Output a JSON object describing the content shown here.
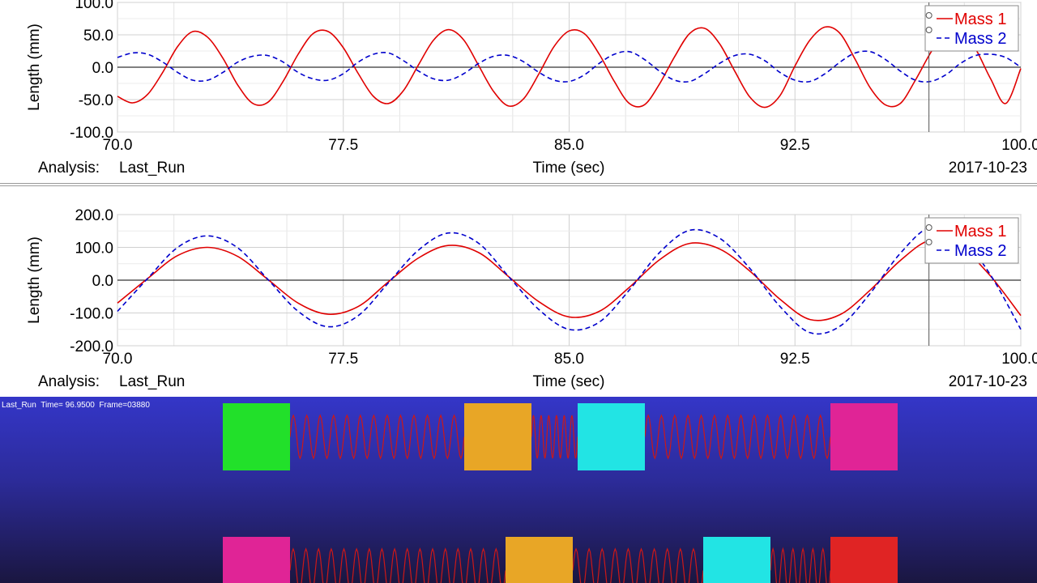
{
  "charts_meta": {
    "analysis_label": "Analysis:",
    "analysis_name": "Last_Run",
    "date": "2017-10-23"
  },
  "chart_data": [
    {
      "type": "line",
      "title": "",
      "xlabel": "Time (sec)",
      "ylabel": "Length (mm)",
      "xlim": [
        70.0,
        100.0
      ],
      "ylim": [
        -100.0,
        100.0
      ],
      "xticks": [
        "70.0",
        "77.5",
        "85.0",
        "92.5",
        "100.0"
      ],
      "yticks": [
        "100.0",
        "50.0",
        "0.0",
        "-50.0",
        "-100.0"
      ],
      "grid": true,
      "legend_position": "top-right",
      "cursor_x": 96.95,
      "series": [
        {
          "name": "Mass 1",
          "color": "#e00000",
          "dash": "solid",
          "x": [
            70.0,
            70.5,
            71.0,
            71.5,
            72.0,
            72.5,
            73.0,
            73.5,
            74.0,
            74.5,
            75.0,
            75.5,
            76.0,
            76.5,
            77.0,
            77.5,
            78.0,
            78.5,
            79.0,
            79.5,
            80.0,
            80.5,
            81.0,
            81.5,
            82.0,
            82.5,
            83.0,
            83.5,
            84.0,
            84.5,
            85.0,
            85.5,
            86.0,
            86.5,
            87.0,
            87.5,
            88.0,
            88.5,
            89.0,
            89.5,
            90.0,
            90.5,
            91.0,
            91.5,
            92.0,
            92.5,
            93.0,
            93.5,
            94.0,
            94.5,
            95.0,
            95.5,
            96.0,
            96.5,
            97.0,
            97.5,
            98.0,
            98.5,
            99.0,
            99.5,
            100.0
          ],
          "values": [
            -45,
            -55,
            -42,
            -8,
            32,
            55,
            46,
            14,
            -28,
            -56,
            -54,
            -22,
            20,
            52,
            55,
            30,
            -10,
            -45,
            -56,
            -36,
            4,
            42,
            58,
            42,
            2,
            -38,
            -60,
            -48,
            -10,
            32,
            56,
            52,
            20,
            -22,
            -56,
            -58,
            -26,
            16,
            52,
            60,
            36,
            -6,
            -46,
            -62,
            -44,
            2,
            42,
            62,
            52,
            12,
            -32,
            -58,
            -56,
            -20,
            22,
            56,
            58,
            28,
            -18,
            -56,
            -2
          ]
        },
        {
          "name": "Mass 2",
          "color": "#0000cc",
          "dash": "dashed",
          "x": [
            70.0,
            70.5,
            71.0,
            71.5,
            72.0,
            72.5,
            73.0,
            73.5,
            74.0,
            74.5,
            75.0,
            75.5,
            76.0,
            76.5,
            77.0,
            77.5,
            78.0,
            78.5,
            79.0,
            79.5,
            80.0,
            80.5,
            81.0,
            81.5,
            82.0,
            82.5,
            83.0,
            83.5,
            84.0,
            84.5,
            85.0,
            85.5,
            86.0,
            86.5,
            87.0,
            87.5,
            88.0,
            88.5,
            89.0,
            89.5,
            90.0,
            90.5,
            91.0,
            91.5,
            92.0,
            92.5,
            93.0,
            93.5,
            94.0,
            94.5,
            95.0,
            95.5,
            96.0,
            96.5,
            97.0,
            97.5,
            98.0,
            98.5,
            99.0,
            99.5,
            100.0
          ],
          "values": [
            15,
            22,
            20,
            8,
            -8,
            -20,
            -20,
            -8,
            8,
            17,
            18,
            8,
            -8,
            -18,
            -20,
            -10,
            8,
            20,
            22,
            10,
            -6,
            -18,
            -20,
            -10,
            6,
            17,
            18,
            8,
            -8,
            -20,
            -22,
            -12,
            6,
            20,
            24,
            12,
            -6,
            -20,
            -22,
            -10,
            6,
            18,
            20,
            10,
            -8,
            -20,
            -22,
            -10,
            8,
            22,
            24,
            12,
            -6,
            -20,
            -22,
            -12,
            6,
            18,
            20,
            15,
            0
          ]
        }
      ]
    },
    {
      "type": "line",
      "title": "",
      "xlabel": "Time (sec)",
      "ylabel": "Length (mm)",
      "xlim": [
        70.0,
        100.0
      ],
      "ylim": [
        -200.0,
        200.0
      ],
      "xticks": [
        "70.0",
        "77.5",
        "85.0",
        "92.5",
        "100.0"
      ],
      "yticks": [
        "200.0",
        "100.0",
        "0.0",
        "-100.0",
        "-200.0"
      ],
      "grid": true,
      "legend_position": "top-right",
      "cursor_x": 96.95,
      "series": [
        {
          "name": "Mass 1",
          "color": "#e00000",
          "dash": "solid",
          "x": [
            70.0,
            71.0,
            72.0,
            73.0,
            74.0,
            75.0,
            76.0,
            77.0,
            78.0,
            79.0,
            80.0,
            81.0,
            82.0,
            83.0,
            84.0,
            85.0,
            86.0,
            87.0,
            88.0,
            89.0,
            90.0,
            91.0,
            92.0,
            93.0,
            94.0,
            95.0,
            96.0,
            97.0,
            98.0,
            99.0,
            100.0
          ],
          "values": [
            -70,
            5,
            75,
            100,
            72,
            2,
            -70,
            -104,
            -80,
            -5,
            68,
            106,
            84,
            10,
            -66,
            -112,
            -95,
            -22,
            62,
            112,
            95,
            28,
            -58,
            -120,
            -105,
            -30,
            60,
            122,
            100,
            12,
            -108
          ]
        },
        {
          "name": "Mass 2",
          "color": "#0000cc",
          "dash": "dashed",
          "x": [
            70.0,
            71.0,
            72.0,
            73.0,
            74.0,
            75.0,
            76.0,
            77.0,
            78.0,
            79.0,
            80.0,
            81.0,
            82.0,
            83.0,
            84.0,
            85.0,
            86.0,
            87.0,
            88.0,
            89.0,
            90.0,
            91.0,
            92.0,
            93.0,
            94.0,
            95.0,
            96.0,
            97.0,
            98.0,
            99.0,
            100.0
          ],
          "values": [
            -95,
            5,
            100,
            135,
            98,
            2,
            -95,
            -142,
            -108,
            -8,
            92,
            144,
            112,
            10,
            -90,
            -150,
            -128,
            -30,
            84,
            152,
            128,
            36,
            -80,
            -160,
            -140,
            -40,
            82,
            162,
            132,
            15,
            -150
          ]
        }
      ]
    }
  ],
  "animation": {
    "status_run": "Last_Run",
    "status_time": "Time= 96.9500",
    "status_frame": "Frame=03880",
    "spring_color": "#cc1818",
    "rows": [
      {
        "blocks": [
          {
            "name": "green",
            "color": "#22e02a"
          },
          {
            "name": "orange",
            "color": "#e8a626"
          },
          {
            "name": "cyan",
            "color": "#22e4e4"
          },
          {
            "name": "magenta",
            "color": "#e02496"
          }
        ]
      },
      {
        "blocks": [
          {
            "name": "magenta",
            "color": "#e02496"
          },
          {
            "name": "orange",
            "color": "#e8a626"
          },
          {
            "name": "cyan",
            "color": "#22e4e4"
          },
          {
            "name": "red",
            "color": "#e02424"
          }
        ]
      }
    ]
  }
}
